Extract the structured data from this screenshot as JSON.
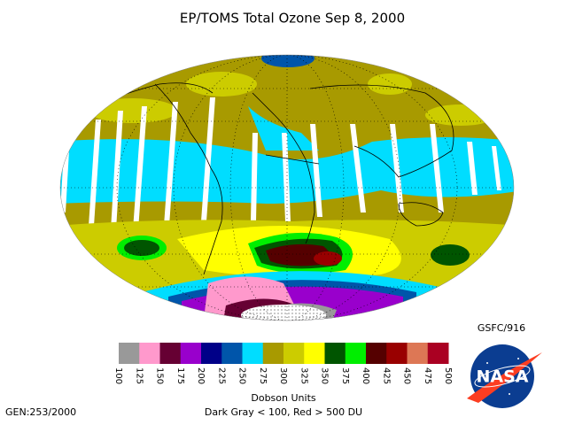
{
  "header": {
    "title": "EP/TOMS Total Ozone Sep  8, 2000",
    "credit": "GSFC/916",
    "generator": "GEN:253/2000"
  },
  "legend": {
    "ticks": [
      100,
      125,
      150,
      175,
      200,
      225,
      250,
      275,
      300,
      325,
      350,
      375,
      400,
      425,
      450,
      475,
      500
    ],
    "colors": [
      "#999999",
      "#ff99cc",
      "#660033",
      "#9900cc",
      "#000088",
      "#0055aa",
      "#00ddff",
      "#a89a00",
      "#cccc00",
      "#ffff00",
      "#005500",
      "#00ee00",
      "#550000",
      "#990000",
      "#dd7755",
      "#aa0022"
    ],
    "label": "Dobson Units",
    "note": "Dark Gray < 100, Red > 500 DU"
  },
  "logo": {
    "text": "NASA"
  }
}
